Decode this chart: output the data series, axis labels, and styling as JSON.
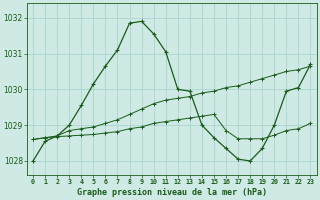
{
  "title": "Graphe pression niveau de la mer (hPa)",
  "background_color": "#cfe9e5",
  "grid_color": "#a8d5ce",
  "line_color": "#1a5c1a",
  "xlim": [
    -0.5,
    23.5
  ],
  "ylim": [
    1027.6,
    1032.4
  ],
  "yticks": [
    1028,
    1029,
    1030,
    1031,
    1032
  ],
  "xtick_labels": [
    "0",
    "1",
    "2",
    "3",
    "4",
    "5",
    "6",
    "7",
    "8",
    "9",
    "10",
    "11",
    "12",
    "13",
    "14",
    "15",
    "16",
    "17",
    "18",
    "19",
    "20",
    "21",
    "22",
    "23"
  ],
  "series1_x": [
    0,
    1,
    2,
    3,
    4,
    5,
    6,
    7,
    8,
    9,
    10,
    11,
    12,
    13,
    14,
    15,
    16,
    17,
    18,
    19,
    20,
    21,
    22,
    23
  ],
  "series1_y": [
    1028.0,
    1028.55,
    1028.7,
    1029.0,
    1029.55,
    1030.15,
    1030.65,
    1031.1,
    1031.85,
    1031.9,
    1031.55,
    1031.05,
    1030.0,
    1029.95,
    1029.0,
    1028.65,
    1028.35,
    1028.05,
    1028.0,
    1028.35,
    1029.0,
    1029.95,
    1030.05,
    1030.7
  ],
  "series2_x": [
    0,
    1,
    2,
    3,
    4,
    5,
    6,
    7,
    8,
    9,
    10,
    11,
    12,
    13,
    14,
    15,
    16,
    17,
    18,
    19,
    20,
    21,
    22,
    23
  ],
  "series2_y": [
    1028.6,
    1028.65,
    1028.7,
    1028.85,
    1028.9,
    1028.95,
    1029.05,
    1029.15,
    1029.3,
    1029.45,
    1029.6,
    1029.7,
    1029.75,
    1029.8,
    1029.9,
    1029.95,
    1030.05,
    1030.1,
    1030.2,
    1030.3,
    1030.4,
    1030.5,
    1030.55,
    1030.65
  ],
  "series3_x": [
    0,
    1,
    2,
    3,
    4,
    5,
    6,
    7,
    8,
    9,
    10,
    11,
    12,
    13,
    14,
    15,
    16,
    17,
    18,
    19,
    20,
    21,
    22,
    23
  ],
  "series3_y": [
    1028.6,
    1028.65,
    1028.68,
    1028.7,
    1028.72,
    1028.74,
    1028.78,
    1028.82,
    1028.9,
    1028.95,
    1029.05,
    1029.1,
    1029.15,
    1029.2,
    1029.25,
    1029.3,
    1028.85,
    1028.62,
    1028.62,
    1028.62,
    1028.72,
    1028.85,
    1028.9,
    1029.05
  ]
}
